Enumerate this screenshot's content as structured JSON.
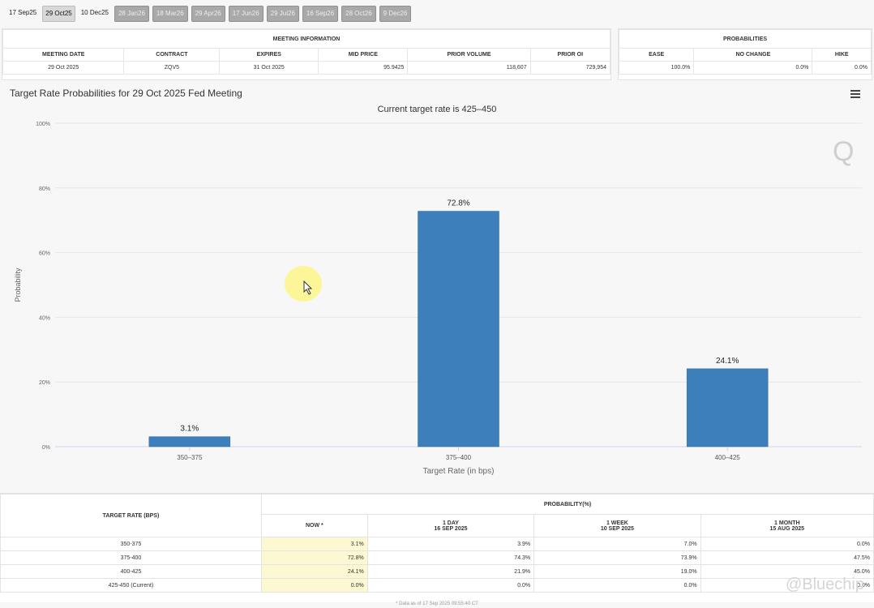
{
  "tabs": [
    {
      "label": "17 Sep25",
      "style": "plain"
    },
    {
      "label": "29 Oct25",
      "style": "active"
    },
    {
      "label": "10 Dec25",
      "style": "plain"
    },
    {
      "label": "28 Jan26",
      "style": "gray"
    },
    {
      "label": "18 Mar26",
      "style": "gray"
    },
    {
      "label": "29 Apr26",
      "style": "gray"
    },
    {
      "label": "17 Jun26",
      "style": "gray"
    },
    {
      "label": "29 Jul26",
      "style": "gray"
    },
    {
      "label": "16 Sep26",
      "style": "gray"
    },
    {
      "label": "28 Oct26",
      "style": "gray"
    },
    {
      "label": "9 Dec26",
      "style": "gray"
    }
  ],
  "meeting_info": {
    "header": "MEETING INFORMATION",
    "columns": [
      "MEETING DATE",
      "CONTRACT",
      "EXPIRES",
      "MID PRICE",
      "PRIOR VOLUME",
      "PRIOR OI"
    ],
    "row": [
      "29 Oct 2025",
      "ZQV5",
      "31 Oct 2025",
      "95.9425",
      "118,607",
      "729,954"
    ]
  },
  "probabilities": {
    "header": "PROBABILITIES",
    "columns": [
      "EASE",
      "NO CHANGE",
      "HIKE"
    ],
    "row": [
      "100.0%",
      "0.0%",
      "0.0%"
    ]
  },
  "chart_title": "Target Rate Probabilities for 29 Oct 2025 Fed Meeting",
  "chart_subtitle": "Current target rate is 425–450",
  "q_logo": "Q",
  "chart_data": {
    "type": "bar",
    "categories": [
      "350–375",
      "375–400",
      "400–425"
    ],
    "values": [
      3.1,
      72.8,
      24.1
    ],
    "data_labels": [
      "3.1%",
      "72.8%",
      "24.1%"
    ],
    "title": "Target Rate Probabilities for 29 Oct 2025 Fed Meeting",
    "subtitle": "Current target rate is 425–450",
    "xlabel": "Target Rate (in bps)",
    "ylabel": "Probability",
    "ylim": [
      0,
      100
    ],
    "yticks": [
      "0%",
      "20%",
      "40%",
      "60%",
      "80%",
      "100%"
    ],
    "grid": true,
    "color": "#3d7fbb"
  },
  "bottom_table": {
    "col1_header": "TARGET RATE (BPS)",
    "group_header": "PROBABILITY(%)",
    "columns": [
      {
        "line1": "NOW *",
        "line2": ""
      },
      {
        "line1": "1 DAY",
        "line2": "16 SEP 2025"
      },
      {
        "line1": "1 WEEK",
        "line2": "10 SEP 2025"
      },
      {
        "line1": "1 MONTH",
        "line2": "15 AUG 2025"
      }
    ],
    "rows": [
      {
        "rate": "350-375",
        "values": [
          "3.1%",
          "3.9%",
          "7.0%",
          "0.0%"
        ]
      },
      {
        "rate": "375-400",
        "values": [
          "72.8%",
          "74.3%",
          "73.9%",
          "47.5%"
        ]
      },
      {
        "rate": "400-425",
        "values": [
          "24.1%",
          "21.9%",
          "19.0%",
          "45.0%"
        ]
      },
      {
        "rate": "425-450 (Current)",
        "values": [
          "0.0%",
          "0.0%",
          "0.0%",
          "0.0%"
        ]
      }
    ]
  },
  "footnote": "* Data as of 17 Sep 2025 09:55:40 CT",
  "watermark": "@Bluechip"
}
